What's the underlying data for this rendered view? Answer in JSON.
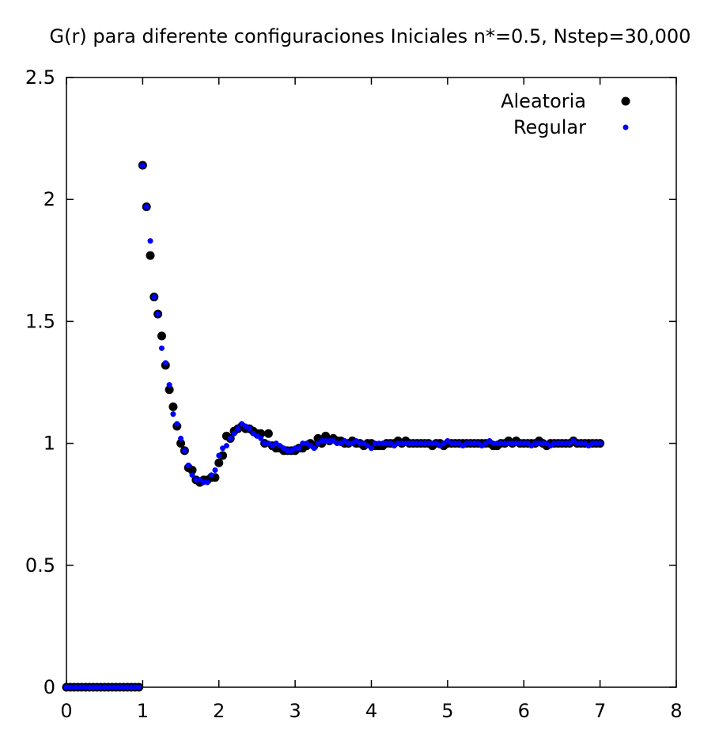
{
  "chart_data": {
    "type": "scatter",
    "title": "G(r) para diferente configuraciones Iniciales n*=0.5, Nstep=30,000",
    "xlabel": "",
    "ylabel": "",
    "xlim": [
      0,
      8
    ],
    "ylim": [
      0,
      2.5
    ],
    "xticks": [
      0,
      1,
      2,
      3,
      4,
      5,
      6,
      7,
      8
    ],
    "yticks": [
      0,
      0.5,
      1,
      1.5,
      2,
      2.5
    ],
    "xtick_labels": [
      "0",
      "1",
      "2",
      "3",
      "4",
      "5",
      "6",
      "7",
      "8"
    ],
    "ytick_labels": [
      "0",
      "0.5",
      "1",
      "1.5",
      "2",
      "2.5"
    ],
    "grid": false,
    "legend_position": "top-right",
    "series": [
      {
        "name": "Aleatoria",
        "color": "#000000",
        "marker": "large-dot",
        "points": [
          [
            0.0,
            0
          ],
          [
            0.05,
            0
          ],
          [
            0.1,
            0
          ],
          [
            0.15,
            0
          ],
          [
            0.2,
            0
          ],
          [
            0.25,
            0
          ],
          [
            0.3,
            0
          ],
          [
            0.35,
            0
          ],
          [
            0.4,
            0
          ],
          [
            0.45,
            0
          ],
          [
            0.5,
            0
          ],
          [
            0.55,
            0
          ],
          [
            0.6,
            0
          ],
          [
            0.65,
            0
          ],
          [
            0.7,
            0
          ],
          [
            0.75,
            0
          ],
          [
            0.8,
            0
          ],
          [
            0.85,
            0
          ],
          [
            0.9,
            0
          ],
          [
            0.95,
            0
          ],
          [
            1.0,
            2.14
          ],
          [
            1.05,
            1.97
          ],
          [
            1.1,
            1.77
          ],
          [
            1.15,
            1.6
          ],
          [
            1.2,
            1.53
          ],
          [
            1.25,
            1.44
          ],
          [
            1.3,
            1.32
          ],
          [
            1.35,
            1.22
          ],
          [
            1.4,
            1.15
          ],
          [
            1.45,
            1.07
          ],
          [
            1.5,
            1.0
          ],
          [
            1.55,
            0.97
          ],
          [
            1.6,
            0.9
          ],
          [
            1.65,
            0.89
          ],
          [
            1.7,
            0.85
          ],
          [
            1.75,
            0.84
          ],
          [
            1.8,
            0.85
          ],
          [
            1.85,
            0.85
          ],
          [
            1.9,
            0.86
          ],
          [
            1.95,
            0.86
          ],
          [
            2.0,
            0.92
          ],
          [
            2.05,
            0.95
          ],
          [
            2.1,
            1.03
          ],
          [
            2.15,
            1.02
          ],
          [
            2.2,
            1.05
          ],
          [
            2.25,
            1.06
          ],
          [
            2.3,
            1.07
          ],
          [
            2.35,
            1.06
          ],
          [
            2.4,
            1.06
          ],
          [
            2.45,
            1.05
          ],
          [
            2.5,
            1.04
          ],
          [
            2.55,
            1.04
          ],
          [
            2.6,
            1.0
          ],
          [
            2.65,
            1.04
          ],
          [
            2.7,
            0.99
          ],
          [
            2.75,
            0.98
          ],
          [
            2.8,
            0.98
          ],
          [
            2.85,
            0.97
          ],
          [
            2.9,
            0.97
          ],
          [
            2.95,
            0.97
          ],
          [
            3.0,
            0.97
          ],
          [
            3.05,
            0.98
          ],
          [
            3.1,
            0.98
          ],
          [
            3.15,
            0.99
          ],
          [
            3.2,
            1.0
          ],
          [
            3.25,
            0.99
          ],
          [
            3.3,
            1.02
          ],
          [
            3.35,
            1.0
          ],
          [
            3.4,
            1.03
          ],
          [
            3.45,
            1.01
          ],
          [
            3.5,
            1.02
          ],
          [
            3.55,
            1.01
          ],
          [
            3.6,
            1.01
          ],
          [
            3.65,
            1.0
          ],
          [
            3.7,
            1.0
          ],
          [
            3.75,
            1.01
          ],
          [
            3.8,
            1.0
          ],
          [
            3.85,
            1.0
          ],
          [
            3.9,
            0.99
          ],
          [
            3.95,
            1.0
          ],
          [
            4.0,
            1.0
          ],
          [
            4.05,
            0.99
          ],
          [
            4.1,
            0.99
          ],
          [
            4.15,
            0.99
          ],
          [
            4.2,
            1.0
          ],
          [
            4.25,
            1.0
          ],
          [
            4.3,
            1.0
          ],
          [
            4.35,
            1.01
          ],
          [
            4.4,
            1.0
          ],
          [
            4.45,
            1.01
          ],
          [
            4.5,
            1.0
          ],
          [
            4.55,
            1.0
          ],
          [
            4.6,
            1.0
          ],
          [
            4.65,
            1.0
          ],
          [
            4.7,
            1.0
          ],
          [
            4.75,
            1.0
          ],
          [
            4.8,
            0.99
          ],
          [
            4.85,
            1.0
          ],
          [
            4.9,
            1.0
          ],
          [
            4.95,
            0.99
          ],
          [
            5.0,
            1.0
          ],
          [
            5.05,
            1.0
          ],
          [
            5.1,
            1.0
          ],
          [
            5.15,
            1.0
          ],
          [
            5.2,
            1.0
          ],
          [
            5.25,
            1.0
          ],
          [
            5.3,
            1.0
          ],
          [
            5.35,
            1.0
          ],
          [
            5.4,
            1.0
          ],
          [
            5.45,
            1.0
          ],
          [
            5.5,
            1.0
          ],
          [
            5.55,
            1.0
          ],
          [
            5.6,
            0.99
          ],
          [
            5.65,
            0.99
          ],
          [
            5.7,
            1.0
          ],
          [
            5.75,
            1.0
          ],
          [
            5.8,
            1.01
          ],
          [
            5.85,
            1.0
          ],
          [
            5.9,
            1.01
          ],
          [
            5.95,
            1.0
          ],
          [
            6.0,
            1.0
          ],
          [
            6.05,
            1.0
          ],
          [
            6.1,
            1.0
          ],
          [
            6.15,
            1.0
          ],
          [
            6.2,
            1.01
          ],
          [
            6.25,
            1.0
          ],
          [
            6.3,
            0.99
          ],
          [
            6.35,
            1.0
          ],
          [
            6.4,
            1.0
          ],
          [
            6.45,
            1.0
          ],
          [
            6.5,
            1.0
          ],
          [
            6.55,
            1.0
          ],
          [
            6.6,
            1.0
          ],
          [
            6.65,
            1.01
          ],
          [
            6.7,
            1.0
          ],
          [
            6.75,
            1.0
          ],
          [
            6.8,
            1.0
          ],
          [
            6.85,
            1.0
          ],
          [
            6.9,
            1.0
          ],
          [
            6.95,
            1.0
          ],
          [
            7.0,
            1.0
          ]
        ]
      },
      {
        "name": "Regular",
        "color": "#0000ff",
        "marker": "small-dot",
        "points": [
          [
            0.0,
            0
          ],
          [
            0.05,
            0
          ],
          [
            0.1,
            0
          ],
          [
            0.15,
            0
          ],
          [
            0.2,
            0
          ],
          [
            0.25,
            0
          ],
          [
            0.3,
            0
          ],
          [
            0.35,
            0
          ],
          [
            0.4,
            0
          ],
          [
            0.45,
            0
          ],
          [
            0.5,
            0
          ],
          [
            0.55,
            0
          ],
          [
            0.6,
            0
          ],
          [
            0.65,
            0
          ],
          [
            0.7,
            0
          ],
          [
            0.75,
            0
          ],
          [
            0.8,
            0
          ],
          [
            0.85,
            0
          ],
          [
            0.9,
            0
          ],
          [
            0.95,
            0
          ],
          [
            1.0,
            2.14
          ],
          [
            1.05,
            1.97
          ],
          [
            1.1,
            1.83
          ],
          [
            1.15,
            1.6
          ],
          [
            1.2,
            1.53
          ],
          [
            1.25,
            1.39
          ],
          [
            1.3,
            1.33
          ],
          [
            1.35,
            1.24
          ],
          [
            1.4,
            1.12
          ],
          [
            1.45,
            1.08
          ],
          [
            1.5,
            1.02
          ],
          [
            1.55,
            0.97
          ],
          [
            1.6,
            0.91
          ],
          [
            1.65,
            0.87
          ],
          [
            1.7,
            0.85
          ],
          [
            1.75,
            0.85
          ],
          [
            1.8,
            0.84
          ],
          [
            1.85,
            0.84
          ],
          [
            1.9,
            0.87
          ],
          [
            1.95,
            0.89
          ],
          [
            2.0,
            0.95
          ],
          [
            2.05,
            0.98
          ],
          [
            2.1,
            0.99
          ],
          [
            2.15,
            1.02
          ],
          [
            2.2,
            1.04
          ],
          [
            2.25,
            1.06
          ],
          [
            2.3,
            1.08
          ],
          [
            2.35,
            1.07
          ],
          [
            2.4,
            1.06
          ],
          [
            2.45,
            1.04
          ],
          [
            2.5,
            1.03
          ],
          [
            2.55,
            1.02
          ],
          [
            2.6,
            1.0
          ],
          [
            2.65,
            1.0
          ],
          [
            2.7,
            0.99
          ],
          [
            2.75,
            1.0
          ],
          [
            2.8,
            0.99
          ],
          [
            2.85,
            0.98
          ],
          [
            2.9,
            0.97
          ],
          [
            2.95,
            0.97
          ],
          [
            3.0,
            0.98
          ],
          [
            3.05,
            0.98
          ],
          [
            3.1,
            1.0
          ],
          [
            3.15,
            1.0
          ],
          [
            3.2,
            0.99
          ],
          [
            3.25,
            0.98
          ],
          [
            3.3,
            1.0
          ],
          [
            3.35,
            1.01
          ],
          [
            3.4,
            1.01
          ],
          [
            3.45,
            1.01
          ],
          [
            3.5,
            1.01
          ],
          [
            3.55,
            1.0
          ],
          [
            3.6,
            1.0
          ],
          [
            3.65,
            1.01
          ],
          [
            3.7,
            1.0
          ],
          [
            3.75,
            1.0
          ],
          [
            3.8,
            1.01
          ],
          [
            3.85,
            1.0
          ],
          [
            3.9,
            1.0
          ],
          [
            3.95,
            0.99
          ],
          [
            4.0,
            0.98
          ],
          [
            4.05,
            1.0
          ],
          [
            4.1,
            1.0
          ],
          [
            4.15,
            1.0
          ],
          [
            4.2,
            1.0
          ],
          [
            4.25,
            1.0
          ],
          [
            4.3,
            0.99
          ],
          [
            4.35,
            1.0
          ],
          [
            4.4,
            1.0
          ],
          [
            4.45,
            1.0
          ],
          [
            4.5,
            1.0
          ],
          [
            4.55,
            1.0
          ],
          [
            4.6,
            1.0
          ],
          [
            4.65,
            1.0
          ],
          [
            4.7,
            1.0
          ],
          [
            4.75,
            1.0
          ],
          [
            4.8,
            1.0
          ],
          [
            4.85,
            1.0
          ],
          [
            4.9,
            0.99
          ],
          [
            4.95,
            1.0
          ],
          [
            5.0,
            1.01
          ],
          [
            5.05,
            1.0
          ],
          [
            5.1,
            1.0
          ],
          [
            5.15,
            1.0
          ],
          [
            5.2,
            0.99
          ],
          [
            5.25,
            1.0
          ],
          [
            5.3,
            1.0
          ],
          [
            5.35,
            1.0
          ],
          [
            5.4,
            1.0
          ],
          [
            5.45,
            0.99
          ],
          [
            5.5,
            1.0
          ],
          [
            5.55,
            1.01
          ],
          [
            5.6,
            1.0
          ],
          [
            5.65,
            1.0
          ],
          [
            5.7,
            1.0
          ],
          [
            5.75,
            1.0
          ],
          [
            5.8,
            1.0
          ],
          [
            5.85,
            1.0
          ],
          [
            5.9,
            1.0
          ],
          [
            5.95,
            1.0
          ],
          [
            6.0,
            1.0
          ],
          [
            6.05,
            1.0
          ],
          [
            6.1,
            0.99
          ],
          [
            6.15,
            1.0
          ],
          [
            6.2,
            1.0
          ],
          [
            6.25,
            1.0
          ],
          [
            6.3,
            1.0
          ],
          [
            6.35,
            0.99
          ],
          [
            6.4,
            1.0
          ],
          [
            6.45,
            1.0
          ],
          [
            6.5,
            1.0
          ],
          [
            6.55,
            1.0
          ],
          [
            6.6,
            1.0
          ],
          [
            6.65,
            1.01
          ],
          [
            6.7,
            1.0
          ],
          [
            6.75,
            1.0
          ],
          [
            6.8,
            1.0
          ],
          [
            6.85,
            0.99
          ],
          [
            6.9,
            1.0
          ],
          [
            6.95,
            1.0
          ],
          [
            7.0,
            1.0
          ]
        ]
      }
    ]
  }
}
